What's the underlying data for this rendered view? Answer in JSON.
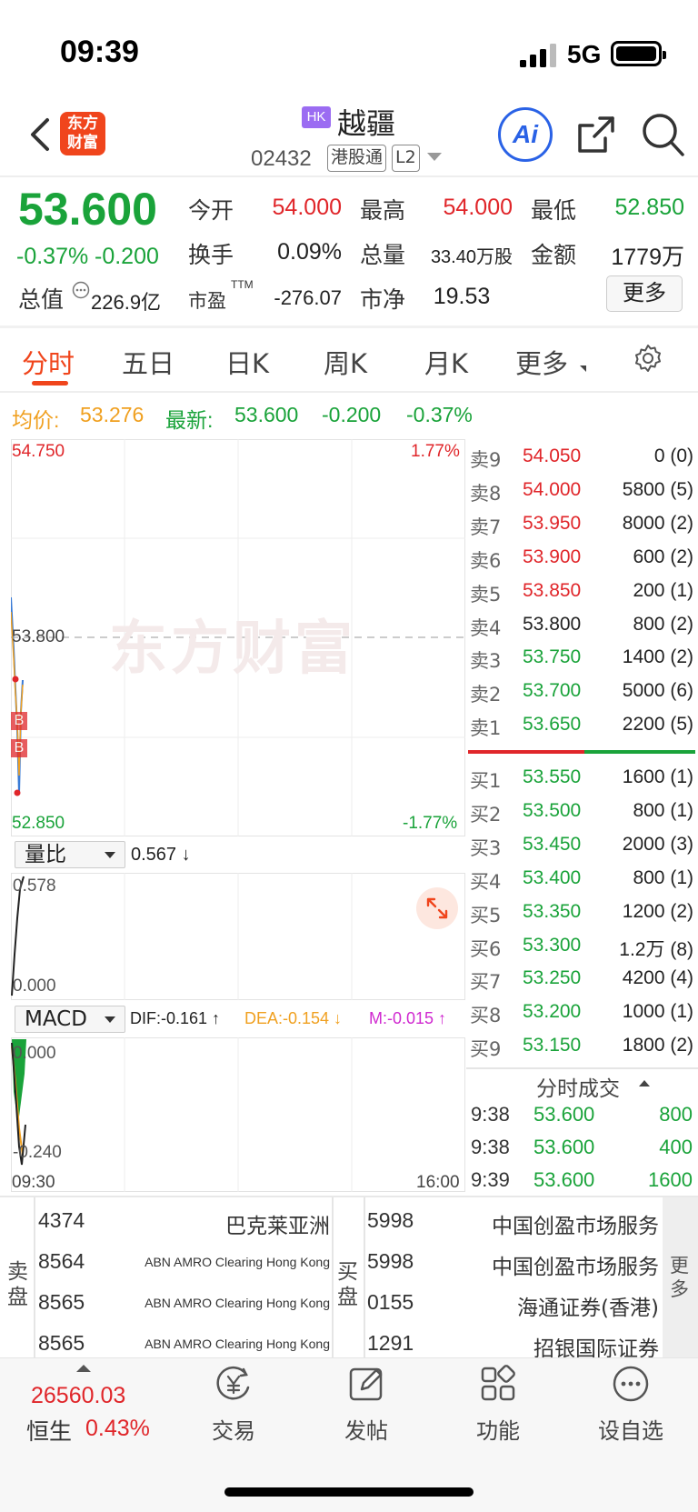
{
  "status_bar": {
    "time": "09:39",
    "network": "5G"
  },
  "header": {
    "logo": "东方\n财富",
    "market_badge": "HK",
    "stock_name": "越疆",
    "stock_code": "02432",
    "tag1": "港股通",
    "tag2": "L2",
    "ai_label": "Ai"
  },
  "quote": {
    "price": "53.600",
    "change_pct": "-0.37%",
    "change": "-0.200",
    "open_label": "今开",
    "open": "54.000",
    "high_label": "最高",
    "high": "54.000",
    "low_label": "最低",
    "low": "52.850",
    "turnover_label": "换手",
    "turnover": "0.09%",
    "volume_label": "总量",
    "volume": "33.40万股",
    "amount_label": "金额",
    "amount": "1779万",
    "mktcap_label": "总值",
    "mktcap": "226.9亿",
    "pe_label": "市盈",
    "pe_sup": "TTM",
    "pe": "-276.07",
    "pb_label": "市净",
    "pb": "19.53",
    "more": "更多"
  },
  "tabs": [
    "分时",
    "五日",
    "日K",
    "周K",
    "月K",
    "更多"
  ],
  "avg_line": {
    "avg_label": "均价:",
    "avg": "53.276",
    "latest_label": "最新:",
    "latest": "53.600",
    "change": "-0.200",
    "change_pct": "-0.37%"
  },
  "chart": {
    "top_price": "54.750",
    "mid_price": "53.800",
    "bottom_price": "52.850",
    "top_pct": "1.77%",
    "bottom_pct": "-1.77%",
    "watermark": "东方财富",
    "time_start": "09:30",
    "time_end": "16:00",
    "markers": [
      "B",
      "B"
    ],
    "colors": {
      "price_line": "#3a7bd5",
      "avg_line": "#f0a020",
      "up": "#e0262a",
      "down": "#1aa33a"
    }
  },
  "volume_ratio": {
    "selector": "量比",
    "value": "0.567 ↓",
    "top": "0.578",
    "bottom": "0.000"
  },
  "macd": {
    "selector": "MACD",
    "dif": "DIF:-0.161 ↑",
    "dea": "DEA:-0.154 ↓",
    "m": "M:-0.015 ↑",
    "top": "0.000",
    "bottom": "-0.240"
  },
  "order_book": {
    "asks": [
      {
        "label": "卖9",
        "price": "54.050",
        "vol": "0 (0)",
        "color": "red"
      },
      {
        "label": "卖8",
        "price": "54.000",
        "vol": "5800 (5)",
        "color": "red"
      },
      {
        "label": "卖7",
        "price": "53.950",
        "vol": "8000 (2)",
        "color": "red"
      },
      {
        "label": "卖6",
        "price": "53.900",
        "vol": "600 (2)",
        "color": "red"
      },
      {
        "label": "卖5",
        "price": "53.850",
        "vol": "200 (1)",
        "color": "red"
      },
      {
        "label": "卖4",
        "price": "53.800",
        "vol": "800 (2)",
        "color": "blk"
      },
      {
        "label": "卖3",
        "price": "53.750",
        "vol": "1400 (2)",
        "color": "grn"
      },
      {
        "label": "卖2",
        "price": "53.700",
        "vol": "5000 (6)",
        "color": "grn"
      },
      {
        "label": "卖1",
        "price": "53.650",
        "vol": "2200 (5)",
        "color": "grn"
      }
    ],
    "bids": [
      {
        "label": "买1",
        "price": "53.550",
        "vol": "1600 (1)",
        "color": "grn"
      },
      {
        "label": "买2",
        "price": "53.500",
        "vol": "800 (1)",
        "color": "grn"
      },
      {
        "label": "买3",
        "price": "53.450",
        "vol": "2000 (3)",
        "color": "grn"
      },
      {
        "label": "买4",
        "price": "53.400",
        "vol": "800 (1)",
        "color": "grn"
      },
      {
        "label": "买5",
        "price": "53.350",
        "vol": "1200 (2)",
        "color": "grn"
      },
      {
        "label": "买6",
        "price": "53.300",
        "vol": "1.2万 (8)",
        "color": "grn"
      },
      {
        "label": "买7",
        "price": "53.250",
        "vol": "4200 (4)",
        "color": "grn"
      },
      {
        "label": "买8",
        "price": "53.200",
        "vol": "1000 (1)",
        "color": "grn"
      },
      {
        "label": "买9",
        "price": "53.150",
        "vol": "1800 (2)",
        "color": "grn"
      }
    ],
    "bid_ratio": 0.51
  },
  "trades": {
    "title": "分时成交",
    "rows": [
      {
        "time": "9:38",
        "price": "53.600",
        "vol": "800"
      },
      {
        "time": "9:38",
        "price": "53.600",
        "vol": "400"
      },
      {
        "time": "9:39",
        "price": "53.600",
        "vol": "1600"
      }
    ]
  },
  "brokers": {
    "sell_label": "卖\n盘",
    "buy_label": "买\n盘",
    "more": "更\n多",
    "sell": [
      {
        "num": "4374",
        "name": "巴克莱亚洲",
        "small": false
      },
      {
        "num": "8564",
        "name": "ABN AMRO Clearing Hong Kong",
        "small": true
      },
      {
        "num": "8565",
        "name": "ABN AMRO Clearing Hong Kong",
        "small": true
      },
      {
        "num": "8565",
        "name": "ABN AMRO Clearing Hong Kong",
        "small": true
      }
    ],
    "buy": [
      {
        "num": "5998",
        "name": "中国创盈市场服务"
      },
      {
        "num": "5998",
        "name": "中国创盈市场服务"
      },
      {
        "num": "0155",
        "name": "海通证券(香港)"
      },
      {
        "num": "1291",
        "name": "招银国际证券"
      }
    ]
  },
  "bottom_bar": {
    "index_value": "26560.03",
    "index_name": "恒生",
    "index_pct": "0.43%",
    "items": [
      "交易",
      "发帖",
      "功能",
      "设自选"
    ]
  }
}
